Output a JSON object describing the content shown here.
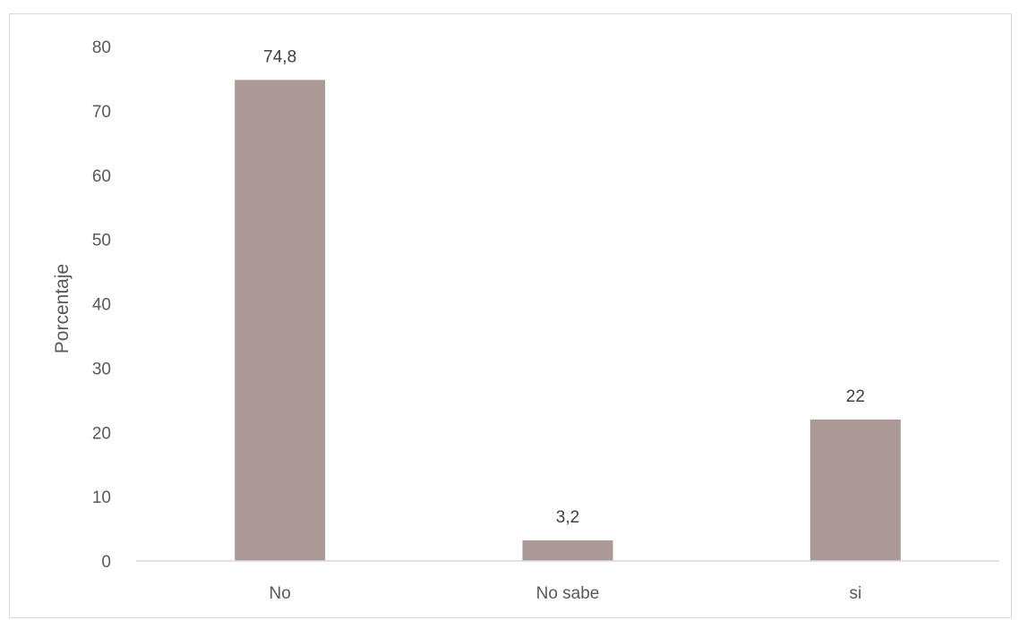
{
  "chart_data": {
    "type": "bar",
    "title": "",
    "xlabel": "",
    "ylabel": "Porcentaje",
    "categories": [
      "No",
      "No sabe",
      "si"
    ],
    "values": [
      74.8,
      3.2,
      22
    ],
    "data_labels": [
      "74,8",
      "3,2",
      "22"
    ],
    "yticks": [
      "0",
      "10",
      "20",
      "30",
      "40",
      "50",
      "60",
      "70",
      "80"
    ],
    "ylim": [
      0,
      80
    ],
    "grid": false,
    "legend": "none",
    "bar_color": "#ab9996"
  }
}
